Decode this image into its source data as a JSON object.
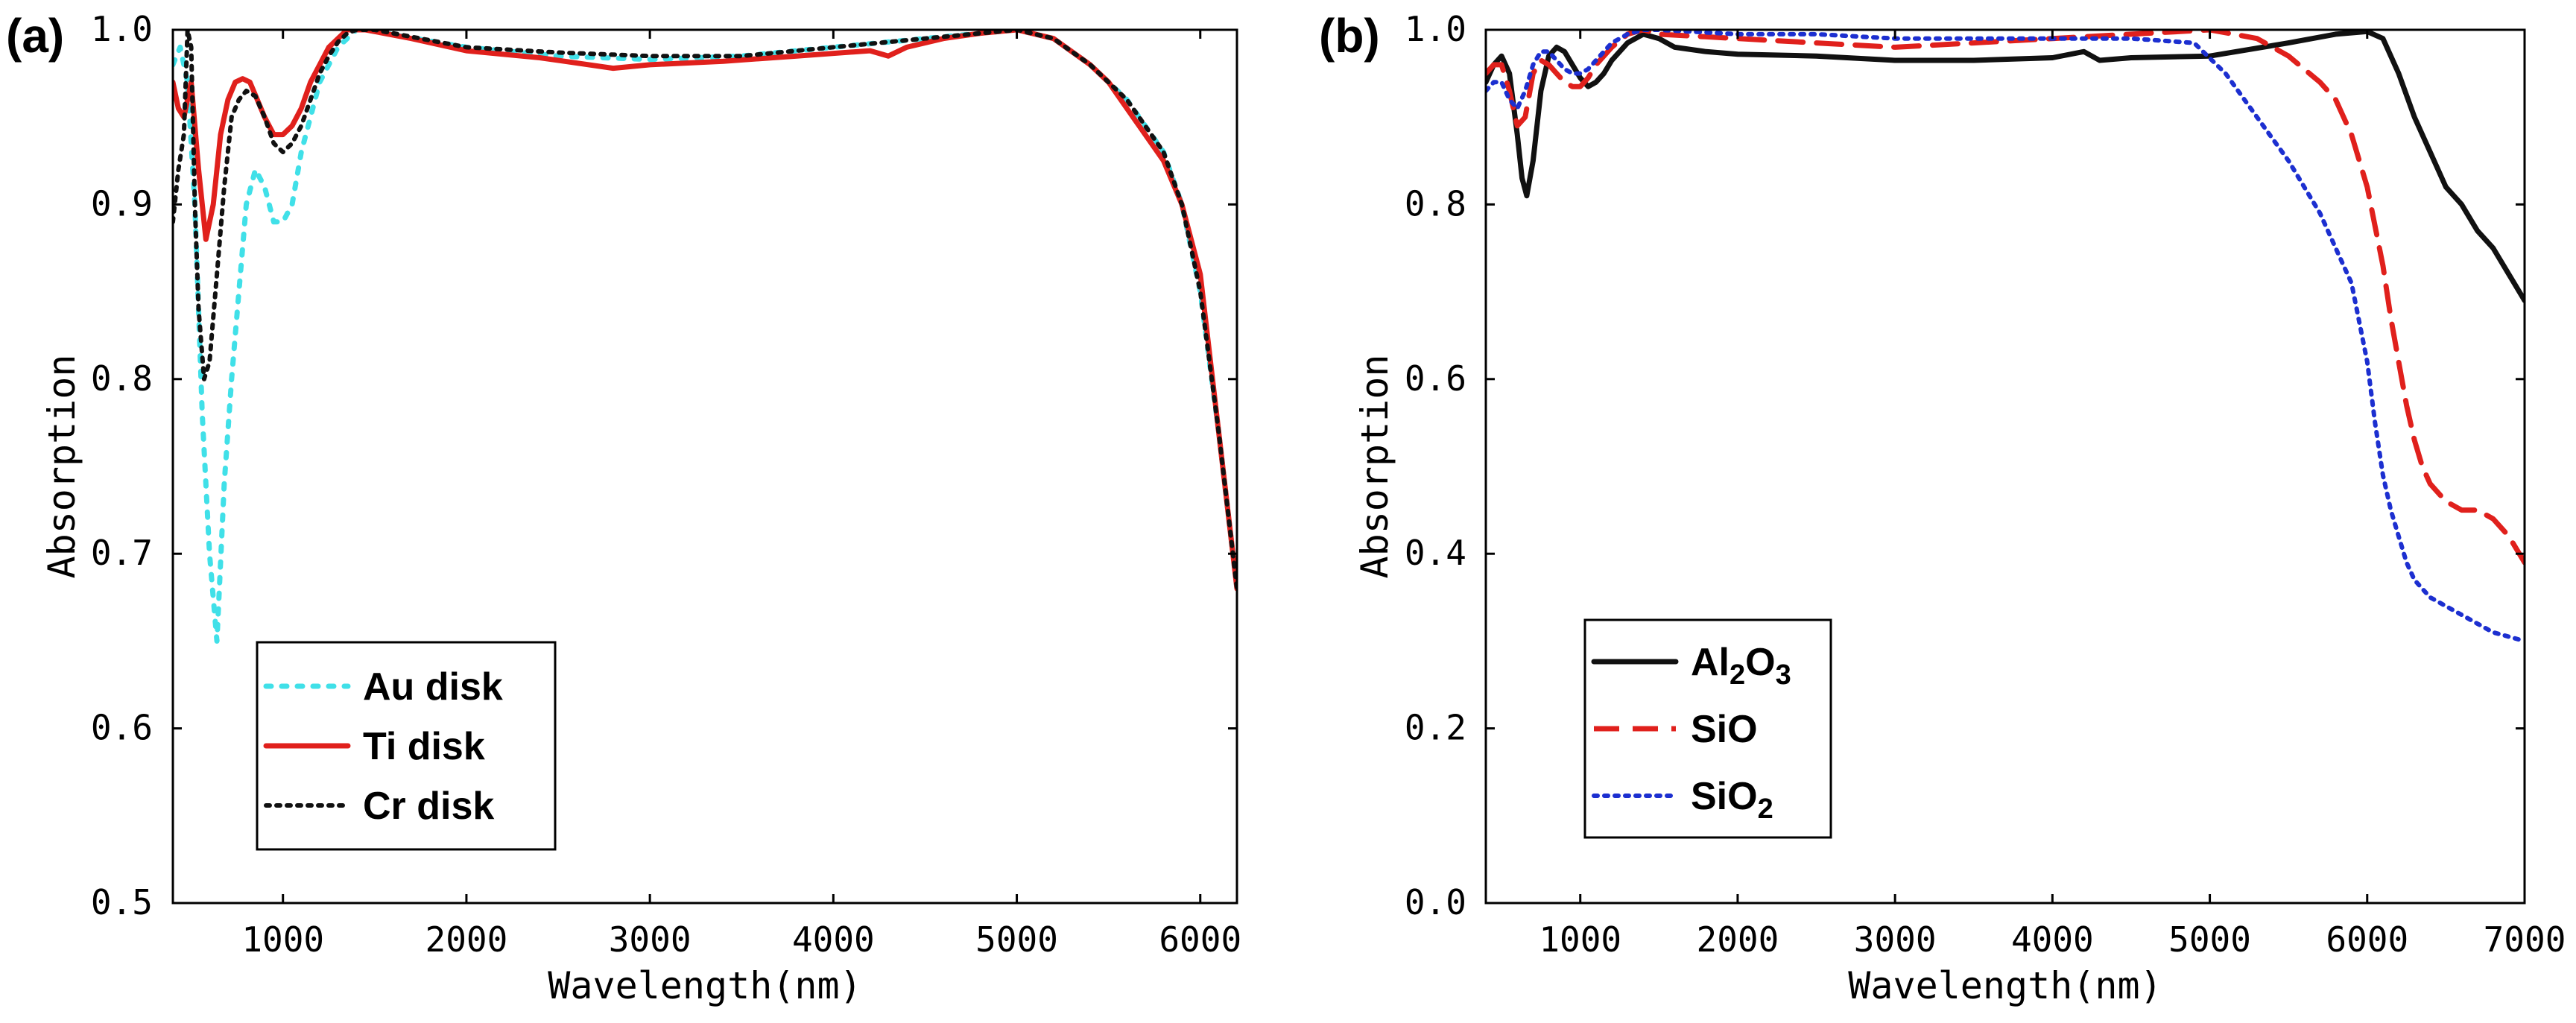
{
  "chart_data": [
    {
      "id": "a",
      "panel_label": "(a)",
      "type": "line",
      "xlabel": "Wavelength(nm)",
      "ylabel": "Absorption",
      "xlim": [
        400,
        6200
      ],
      "ylim": [
        0.5,
        1.0
      ],
      "xticks": [
        1000,
        2000,
        3000,
        4000,
        5000,
        6000
      ],
      "yticks": [
        0.5,
        0.6,
        0.7,
        0.8,
        0.9,
        1.0
      ],
      "ytick_decimals": 1,
      "legend_position": "bottom-left",
      "series": [
        {
          "name": "Au disk",
          "color": "#40e0e8",
          "dash": "dotted-cyan",
          "x": [
            400,
            440,
            480,
            520,
            560,
            600,
            640,
            680,
            720,
            760,
            800,
            850,
            900,
            950,
            1000,
            1050,
            1100,
            1150,
            1200,
            1250,
            1300,
            1350,
            1400,
            1450,
            1500,
            2000,
            2500,
            3000,
            3500,
            4000,
            4500,
            5000,
            5200,
            5400,
            5600,
            5800,
            5900,
            6000,
            6100,
            6200
          ],
          "y": [
            0.98,
            0.99,
            0.97,
            0.9,
            0.78,
            0.7,
            0.65,
            0.74,
            0.8,
            0.85,
            0.9,
            0.92,
            0.91,
            0.89,
            0.89,
            0.9,
            0.93,
            0.95,
            0.97,
            0.98,
            0.99,
            0.995,
            1.0,
            1.0,
            0.999,
            0.99,
            0.985,
            0.983,
            0.985,
            0.99,
            0.995,
            1.0,
            0.995,
            0.98,
            0.96,
            0.93,
            0.9,
            0.85,
            0.77,
            0.68
          ]
        },
        {
          "name": "Ti disk",
          "color": "#e0201c",
          "dash": "solid",
          "x": [
            400,
            430,
            460,
            500,
            540,
            580,
            620,
            660,
            700,
            740,
            780,
            820,
            860,
            900,
            950,
            1000,
            1050,
            1100,
            1150,
            1200,
            1250,
            1300,
            1350,
            1400,
            1450,
            1500,
            1700,
            2000,
            2400,
            2800,
            3000,
            3400,
            3800,
            4200,
            4300,
            4400,
            4600,
            4800,
            5000,
            5200,
            5400,
            5500,
            5600,
            5700,
            5800,
            5900,
            6000,
            6100,
            6200
          ],
          "y": [
            0.97,
            0.955,
            0.95,
            0.97,
            0.92,
            0.88,
            0.9,
            0.94,
            0.96,
            0.97,
            0.972,
            0.97,
            0.96,
            0.95,
            0.94,
            0.94,
            0.945,
            0.955,
            0.97,
            0.98,
            0.99,
            0.995,
            1.0,
            1.0,
            1.0,
            0.999,
            0.995,
            0.988,
            0.984,
            0.978,
            0.98,
            0.982,
            0.985,
            0.988,
            0.985,
            0.99,
            0.995,
            0.998,
            1.0,
            0.995,
            0.98,
            0.97,
            0.955,
            0.94,
            0.925,
            0.9,
            0.86,
            0.77,
            0.68
          ]
        },
        {
          "name": "Cr disk",
          "color": "#111111",
          "dash": "dotted",
          "x": [
            400,
            430,
            460,
            480,
            500,
            520,
            540,
            570,
            600,
            640,
            680,
            720,
            760,
            800,
            850,
            900,
            950,
            1000,
            1050,
            1100,
            1150,
            1200,
            1250,
            1300,
            1350,
            1400,
            1450,
            1500,
            2000,
            2500,
            3000,
            3500,
            4000,
            4500,
            5000,
            5200,
            5400,
            5600,
            5800,
            5900,
            6000,
            6100,
            6200
          ],
          "y": [
            0.89,
            0.92,
            0.94,
            1.0,
            0.99,
            0.9,
            0.84,
            0.8,
            0.81,
            0.86,
            0.91,
            0.95,
            0.96,
            0.965,
            0.962,
            0.95,
            0.935,
            0.93,
            0.935,
            0.945,
            0.96,
            0.975,
            0.985,
            0.993,
            0.998,
            1.0,
            1.0,
            1.0,
            0.99,
            0.987,
            0.985,
            0.985,
            0.99,
            0.995,
            1.0,
            0.995,
            0.98,
            0.96,
            0.93,
            0.9,
            0.85,
            0.77,
            0.68
          ]
        }
      ]
    },
    {
      "id": "b",
      "panel_label": "(b)",
      "type": "line",
      "xlabel": "Wavelength(nm)",
      "ylabel": "Absorption",
      "xlim": [
        400,
        7000
      ],
      "ylim": [
        0.0,
        1.0
      ],
      "xticks": [
        1000,
        2000,
        3000,
        4000,
        5000,
        6000,
        7000
      ],
      "yticks": [
        0.0,
        0.2,
        0.4,
        0.6,
        0.8,
        1.0
      ],
      "ytick_decimals": 1,
      "legend_position": "bottom-left",
      "series": [
        {
          "name": "Al2O3",
          "name_parts": [
            "Al",
            "2",
            "O",
            "3"
          ],
          "color": "#111111",
          "dash": "solid",
          "x": [
            400,
            450,
            500,
            550,
            600,
            630,
            660,
            700,
            750,
            800,
            850,
            900,
            950,
            1000,
            1050,
            1100,
            1150,
            1200,
            1300,
            1400,
            1500,
            1600,
            1800,
            2000,
            2500,
            3000,
            3500,
            4000,
            4200,
            4300,
            4500,
            5000,
            5500,
            5800,
            6000,
            6100,
            6200,
            6300,
            6400,
            6500,
            6600,
            6700,
            6800,
            6900,
            7000
          ],
          "y": [
            0.94,
            0.96,
            0.97,
            0.95,
            0.88,
            0.83,
            0.81,
            0.85,
            0.93,
            0.97,
            0.98,
            0.975,
            0.96,
            0.945,
            0.935,
            0.94,
            0.95,
            0.965,
            0.985,
            0.995,
            0.99,
            0.98,
            0.975,
            0.972,
            0.97,
            0.965,
            0.965,
            0.968,
            0.975,
            0.965,
            0.968,
            0.97,
            0.985,
            0.995,
            0.998,
            0.99,
            0.95,
            0.9,
            0.86,
            0.82,
            0.8,
            0.77,
            0.75,
            0.72,
            0.69
          ]
        },
        {
          "name": "SiO",
          "color": "#e0201c",
          "dash": "dashed",
          "x": [
            400,
            450,
            500,
            550,
            600,
            650,
            700,
            750,
            800,
            850,
            900,
            950,
            1000,
            1050,
            1100,
            1200,
            1300,
            1400,
            1500,
            2000,
            2500,
            3000,
            3500,
            4000,
            4500,
            5000,
            5300,
            5500,
            5700,
            5800,
            5900,
            6000,
            6100,
            6150,
            6200,
            6250,
            6300,
            6350,
            6400,
            6500,
            6600,
            6700,
            6800,
            6900,
            7000
          ],
          "y": [
            0.95,
            0.96,
            0.96,
            0.93,
            0.89,
            0.9,
            0.95,
            0.965,
            0.96,
            0.95,
            0.94,
            0.935,
            0.935,
            0.945,
            0.96,
            0.98,
            0.995,
            1.0,
            0.995,
            0.99,
            0.985,
            0.98,
            0.985,
            0.99,
            0.995,
            1.0,
            0.99,
            0.97,
            0.94,
            0.92,
            0.88,
            0.82,
            0.73,
            0.67,
            0.62,
            0.57,
            0.53,
            0.5,
            0.48,
            0.46,
            0.45,
            0.45,
            0.44,
            0.42,
            0.39
          ]
        },
        {
          "name": "SiO2",
          "name_parts": [
            "SiO",
            "2"
          ],
          "color": "#1c2fd0",
          "dash": "dotted",
          "x": [
            400,
            450,
            500,
            550,
            600,
            650,
            700,
            750,
            800,
            850,
            900,
            950,
            1000,
            1050,
            1100,
            1200,
            1300,
            1400,
            1500,
            2000,
            2500,
            3000,
            3500,
            4000,
            4500,
            4900,
            5100,
            5300,
            5500,
            5600,
            5700,
            5800,
            5900,
            6000,
            6050,
            6100,
            6150,
            6200,
            6250,
            6300,
            6400,
            6500,
            6600,
            6700,
            6800,
            6900,
            7000
          ],
          "y": [
            0.93,
            0.94,
            0.94,
            0.92,
            0.91,
            0.93,
            0.96,
            0.975,
            0.975,
            0.965,
            0.955,
            0.95,
            0.95,
            0.955,
            0.965,
            0.985,
            0.995,
            1.0,
            1.0,
            0.995,
            0.995,
            0.99,
            0.99,
            0.99,
            0.99,
            0.985,
            0.95,
            0.9,
            0.85,
            0.82,
            0.79,
            0.75,
            0.71,
            0.62,
            0.55,
            0.49,
            0.45,
            0.42,
            0.39,
            0.37,
            0.35,
            0.34,
            0.33,
            0.32,
            0.31,
            0.305,
            0.3
          ]
        }
      ]
    }
  ]
}
